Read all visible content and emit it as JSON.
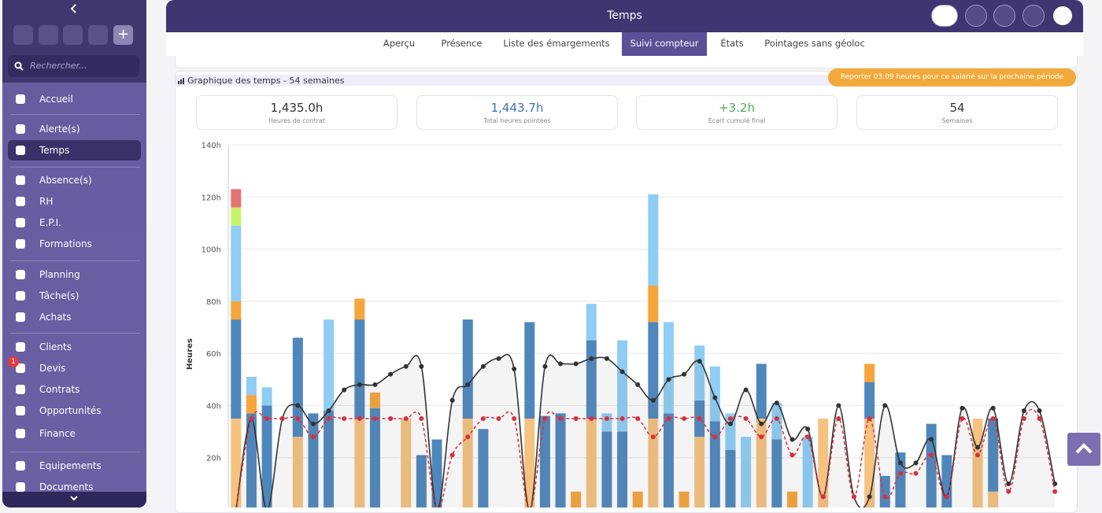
{
  "sidebar": {
    "search_placeholder": "Rechercher...",
    "badge": "1",
    "items": [
      "Accueil",
      "Alerte(s)",
      "Temps",
      "Absence(s)",
      "RH",
      "E.P.I.",
      "Formations",
      "Planning",
      "Tâche(s)",
      "Achats",
      "Clients",
      "Devis",
      "Contrats",
      "Opportunités",
      "Finance",
      "Equipements",
      "Documents"
    ]
  },
  "header": {
    "title": "Temps"
  },
  "tabs": [
    "Aperçu",
    "Présence",
    "Liste des émargements",
    "Suivi compteur",
    "États",
    "Pointages sans géoloc"
  ],
  "section_title": "Graphique des temps - 54 semaines",
  "warning": "Reporter 03:09 heures pour ce salarié sur la prochaine période",
  "stats": [
    {
      "value": "1,435.0h",
      "label": "Heures de contrat"
    },
    {
      "value": "1,443.7h",
      "label": "Total heures pointées"
    },
    {
      "value": "+3.2h",
      "label": "Écart cumulé final"
    },
    {
      "value": "54",
      "label": "Semaines"
    }
  ],
  "chart_data": {
    "type": "bar",
    "y_label": "Heures",
    "ylim": [
      0,
      140
    ],
    "grid": true,
    "yticks": [
      {
        "value": 20,
        "label": "20h"
      },
      {
        "value": 40,
        "label": "40h"
      },
      {
        "value": 60,
        "label": "60h"
      },
      {
        "value": 80,
        "label": "80h"
      },
      {
        "value": 100,
        "label": "100h"
      },
      {
        "value": 120,
        "label": "120h"
      },
      {
        "value": 140,
        "label": "140h"
      }
    ],
    "series": [
      {
        "type": "bar",
        "color": "#f5c27f",
        "values": [
          35,
          0,
          0,
          0,
          28,
          0,
          0,
          0,
          35,
          0,
          0,
          35,
          0,
          0,
          0,
          35,
          0,
          0,
          0,
          35,
          0,
          0,
          0,
          35,
          0,
          0,
          0,
          35,
          0,
          0,
          28,
          0,
          0,
          0,
          35,
          0,
          0,
          0,
          35,
          0,
          0,
          35,
          0,
          0,
          0,
          0,
          0,
          0,
          35,
          7,
          0,
          0,
          0,
          0
        ]
      },
      {
        "type": "bar",
        "color": "#4f87bd",
        "values": [
          38,
          37,
          40,
          0,
          38,
          37,
          38,
          0,
          38,
          39,
          0,
          0,
          21,
          27,
          0,
          38,
          31,
          0,
          0,
          37,
          36,
          37,
          0,
          30,
          30,
          30,
          0,
          37,
          37,
          0,
          14,
          34,
          23,
          0,
          21,
          27,
          0,
          0,
          0,
          0,
          0,
          14,
          13,
          22,
          0,
          33,
          21,
          0,
          0,
          28,
          0,
          0,
          0,
          0
        ]
      },
      {
        "type": "bar",
        "color": "#f6a43c",
        "values": [
          7,
          7,
          0,
          0,
          0,
          0,
          0,
          0,
          8,
          6,
          0,
          0,
          0,
          0,
          0,
          0,
          0,
          0,
          0,
          0,
          0,
          0,
          7,
          0,
          0,
          0,
          7,
          14,
          0,
          7,
          0,
          0,
          0,
          0,
          0,
          0,
          7,
          0,
          0,
          0,
          0,
          7,
          0,
          0,
          0,
          0,
          0,
          0,
          0,
          0,
          0,
          0,
          0,
          0
        ]
      },
      {
        "type": "bar",
        "color": "#8fcdf5",
        "values": [
          29,
          7,
          7,
          0,
          0,
          0,
          35,
          0,
          0,
          0,
          0,
          0,
          0,
          0,
          0,
          0,
          0,
          0,
          0,
          0,
          0,
          0,
          0,
          14,
          7,
          35,
          0,
          35,
          35,
          0,
          21,
          21,
          14,
          28,
          0,
          14,
          0,
          28,
          0,
          0,
          0,
          0,
          0,
          0,
          0,
          0,
          0,
          0,
          0,
          0,
          0,
          0,
          0,
          0
        ]
      },
      {
        "type": "bar",
        "color": "#c6f26c",
        "values": [
          7,
          0,
          0,
          0,
          0,
          0,
          0,
          0,
          0,
          0,
          0,
          0,
          0,
          0,
          0,
          0,
          0,
          0,
          0,
          0,
          0,
          0,
          0,
          0,
          0,
          0,
          0,
          0,
          0,
          0,
          0,
          0,
          0,
          0,
          0,
          0,
          0,
          0,
          0,
          0,
          0,
          0,
          0,
          0,
          0,
          0,
          0,
          0,
          0,
          0,
          0,
          0,
          0,
          0
        ]
      },
      {
        "type": "bar",
        "color": "#e37474",
        "values": [
          7,
          0,
          0,
          0,
          0,
          0,
          0,
          0,
          0,
          0,
          0,
          0,
          0,
          0,
          0,
          0,
          0,
          0,
          0,
          0,
          0,
          0,
          0,
          0,
          0,
          0,
          0,
          0,
          0,
          0,
          0,
          0,
          0,
          0,
          0,
          0,
          0,
          0,
          0,
          0,
          0,
          0,
          0,
          0,
          0,
          0,
          0,
          0,
          0,
          0,
          0,
          0,
          0,
          0
        ]
      },
      {
        "type": "line",
        "color": "#333333",
        "area": true,
        "values": [
          0,
          35,
          0,
          35,
          40,
          33,
          38,
          46,
          48,
          48,
          52,
          55,
          55,
          0,
          42,
          48,
          55,
          58,
          54,
          0,
          55,
          56,
          56,
          58,
          58,
          53,
          48,
          42,
          50,
          52,
          57,
          43,
          33,
          46,
          33,
          41,
          27,
          31,
          5,
          40,
          5,
          5,
          40,
          18,
          18,
          27,
          5,
          39,
          24,
          39,
          10,
          38,
          38,
          10
        ]
      },
      {
        "type": "line",
        "color": "#d63040",
        "dashed": true,
        "values": [
          0,
          35,
          35,
          35,
          35,
          28,
          35,
          35,
          35,
          35,
          35,
          35,
          35,
          0,
          21,
          28,
          35,
          35,
          35,
          0,
          35,
          35,
          35,
          35,
          35,
          35,
          35,
          28,
          35,
          35,
          35,
          28,
          35,
          35,
          28,
          35,
          21,
          28,
          5,
          35,
          5,
          35,
          5,
          14,
          14,
          21,
          5,
          35,
          21,
          35,
          7,
          35,
          35,
          7
        ]
      }
    ]
  }
}
